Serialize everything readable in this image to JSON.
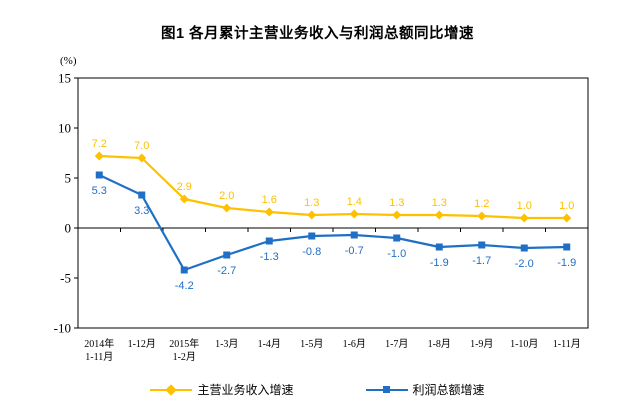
{
  "chart_data": {
    "type": "line",
    "title": "图1  各月累计主营业务收入与利润总额同比增速",
    "unit_label": "(%)",
    "categories": [
      "2014年\n1-11月",
      "1-12月",
      "2015年\n1-2月",
      "1-3月",
      "1-4月",
      "1-5月",
      "1-6月",
      "1-7月",
      "1-8月",
      "1-9月",
      "1-10月",
      "1-11月"
    ],
    "series": [
      {
        "id": "revenue-growth",
        "name": "主营业务收入增速",
        "color": "#FFC000",
        "marker": "diamond",
        "label_position": "above",
        "values": [
          7.2,
          7.0,
          2.9,
          2.0,
          1.6,
          1.3,
          1.4,
          1.3,
          1.3,
          1.2,
          1.0,
          1.0
        ]
      },
      {
        "id": "profit-growth",
        "name": "利润总额增速",
        "color": "#1F6FC5",
        "marker": "square",
        "label_position": "below",
        "values": [
          5.3,
          3.3,
          -4.2,
          -2.7,
          -1.3,
          -0.8,
          -0.7,
          -1.0,
          -1.9,
          -1.7,
          -2.0,
          -1.9
        ]
      }
    ],
    "y_ticks": [
      15,
      10,
      5,
      0,
      -5,
      -10
    ],
    "ylim": [
      -10,
      15
    ],
    "grid": false,
    "legend_position": "bottom",
    "axis_color": "#000000",
    "background_color": "#ffffff"
  }
}
